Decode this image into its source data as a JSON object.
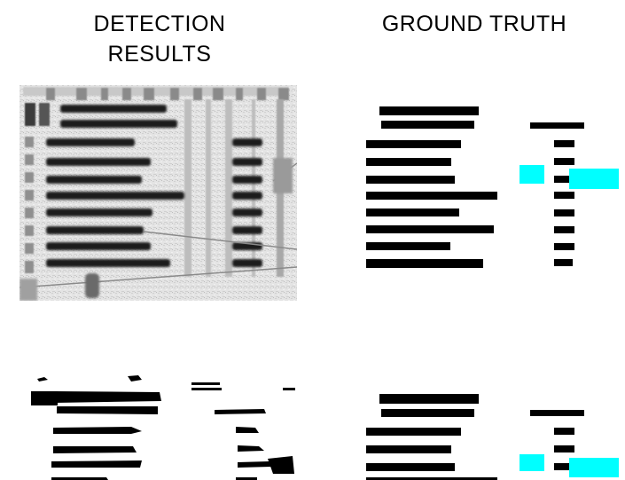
{
  "headings": {
    "detection": "DETECTION\nRESULTS",
    "ground_truth": "GROUND TRUTH"
  },
  "colors": {
    "ink": "#000000",
    "highlight": "#00ffff",
    "page": "#ffffff",
    "scan_paper": "#e6e6e6"
  },
  "panels": [
    {
      "name": "detection-scan-panel",
      "kind": "grayscale scan with dark text-line blobs"
    },
    {
      "name": "ground-truth-top-panel",
      "kind": "black text-line boxes with cyan regions"
    },
    {
      "name": "detection-binary-panel",
      "kind": "binary detected text-line blobs"
    },
    {
      "name": "ground-truth-bottom-panel",
      "kind": "black text-line boxes with cyan regions"
    }
  ]
}
